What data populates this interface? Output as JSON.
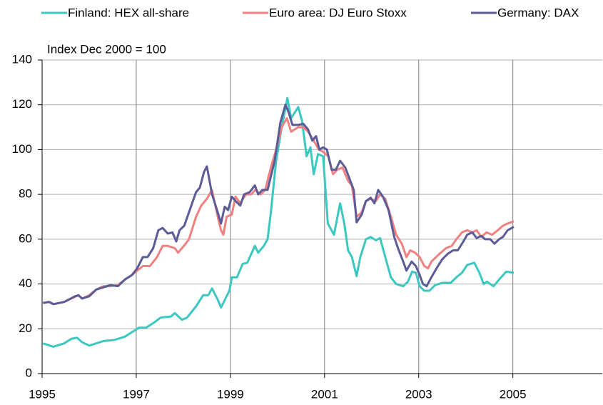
{
  "chart_data": {
    "type": "line",
    "subtitle": "Index Dec 2000 = 100",
    "xlim": [
      1995,
      2006.9
    ],
    "xticks": [
      1995,
      1997,
      1999,
      2001,
      2003,
      2005
    ],
    "ylim": [
      0,
      140
    ],
    "yticks": [
      0,
      20,
      40,
      60,
      80,
      100,
      120,
      140
    ],
    "grid": true,
    "legend": "top",
    "series": [
      {
        "name": "Finland: HEX all-share",
        "color": "#3cc8c0",
        "x": [
          1995.02,
          1995.24,
          1995.47,
          1995.62,
          1995.74,
          1995.85,
          1996.0,
          1996.15,
          1996.3,
          1996.53,
          1996.76,
          1996.91,
          1997.06,
          1997.21,
          1997.36,
          1997.52,
          1997.74,
          1997.82,
          1997.97,
          1998.08,
          1998.27,
          1998.42,
          1998.53,
          1998.61,
          1998.73,
          1998.8,
          1998.98,
          1999.03,
          1999.14,
          1999.26,
          1999.36,
          1999.52,
          1999.59,
          1999.71,
          1999.79,
          1999.86,
          1999.97,
          2000.09,
          2000.21,
          2000.29,
          2000.44,
          2000.52,
          2000.62,
          2000.7,
          2000.77,
          2000.86,
          2000.97,
          2001.07,
          2001.2,
          2001.33,
          2001.42,
          2001.5,
          2001.58,
          2001.68,
          2001.76,
          2001.88,
          2001.98,
          2002.09,
          2002.18,
          2002.29,
          2002.41,
          2002.52,
          2002.67,
          2002.77,
          2002.86,
          2002.94,
          2003.02,
          2003.12,
          2003.23,
          2003.35,
          2003.5,
          2003.68,
          2003.8,
          2003.92,
          2004.03,
          2004.18,
          2004.29,
          2004.38,
          2004.45,
          2004.59,
          2004.71,
          2004.86,
          2005.02
        ],
        "values": [
          13.5,
          12,
          13.5,
          15.5,
          16,
          14,
          12.5,
          13.5,
          14.5,
          15,
          16.5,
          18.5,
          20.5,
          20.5,
          22.5,
          25,
          25.5,
          27,
          24,
          25,
          30,
          35,
          35,
          38,
          33,
          29.5,
          37,
          43,
          43,
          49,
          49.5,
          57,
          54,
          57,
          60,
          72,
          95,
          110,
          123,
          114,
          119,
          113,
          97,
          101,
          89,
          98,
          97,
          67,
          62,
          76,
          67,
          55,
          52,
          43.5,
          52,
          60,
          61,
          59.5,
          60.5,
          52,
          43,
          40,
          39,
          41,
          45.5,
          45,
          39,
          37,
          37,
          39.5,
          40.5,
          40.5,
          43,
          45,
          48.5,
          49.5,
          45,
          40,
          41,
          39,
          42,
          45.5,
          45
        ]
      },
      {
        "name": "Euro area: DJ Euro Stoxx",
        "color": "#f28080",
        "x": [
          1995.02,
          1995.17,
          1995.24,
          1995.47,
          1995.62,
          1995.77,
          1995.85,
          1996.0,
          1996.15,
          1996.3,
          1996.45,
          1996.61,
          1996.76,
          1996.91,
          1997.02,
          1997.14,
          1997.29,
          1997.44,
          1997.56,
          1997.67,
          1997.82,
          1997.89,
          1998.05,
          1998.12,
          1998.27,
          1998.38,
          1998.5,
          1998.61,
          1998.73,
          1998.8,
          1998.85,
          1998.92,
          1999.03,
          1999.11,
          1999.21,
          1999.33,
          1999.44,
          1999.53,
          1999.64,
          1999.74,
          1999.86,
          1999.97,
          2000.09,
          2000.2,
          2000.29,
          2000.44,
          2000.55,
          2000.65,
          2000.77,
          2000.88,
          2000.97,
          2001.08,
          2001.18,
          2001.27,
          2001.38,
          2001.5,
          2001.58,
          2001.68,
          2001.79,
          2001.88,
          2001.98,
          2002.09,
          2002.18,
          2002.29,
          2002.41,
          2002.52,
          2002.64,
          2002.74,
          2002.82,
          2002.92,
          2003.02,
          2003.12,
          2003.2,
          2003.27,
          2003.42,
          2003.58,
          2003.7,
          2003.8,
          2003.92,
          2004.03,
          2004.14,
          2004.23,
          2004.33,
          2004.44,
          2004.56,
          2004.68,
          2004.79,
          2004.89,
          2005.02
        ],
        "values": [
          31.5,
          32,
          31,
          32,
          33.5,
          35,
          33.5,
          35,
          37.5,
          39,
          39,
          39.5,
          42,
          44,
          46,
          48,
          48,
          52,
          57,
          57,
          56,
          54,
          58,
          60,
          70,
          75,
          78,
          82,
          70,
          64,
          62,
          70,
          71,
          79,
          76,
          80,
          80,
          82,
          80,
          82,
          92,
          100,
          110,
          114,
          108,
          110,
          110,
          108,
          104,
          100,
          99,
          97,
          89,
          91,
          92,
          86,
          84,
          70,
          72,
          77,
          78,
          77,
          80,
          78,
          70,
          62,
          58,
          52,
          55,
          54,
          52,
          48,
          47,
          50,
          53,
          56,
          57,
          60,
          63,
          64,
          63,
          64,
          61,
          63,
          62,
          64,
          66,
          67,
          68
        ]
      },
      {
        "name": "Germany: DAX",
        "color": "#5b5b98",
        "x": [
          1995.02,
          1995.14,
          1995.24,
          1995.47,
          1995.7,
          1995.77,
          1995.85,
          1996.0,
          1996.15,
          1996.3,
          1996.45,
          1996.61,
          1996.76,
          1996.91,
          1997.02,
          1997.14,
          1997.24,
          1997.36,
          1997.47,
          1997.56,
          1997.67,
          1997.77,
          1997.85,
          1997.92,
          1998.02,
          1998.12,
          1998.27,
          1998.35,
          1998.44,
          1998.5,
          1998.61,
          1998.73,
          1998.8,
          1998.88,
          1998.95,
          1999.03,
          1999.11,
          1999.21,
          1999.29,
          1999.41,
          1999.52,
          1999.59,
          1999.68,
          1999.79,
          1999.94,
          2000.06,
          2000.17,
          2000.23,
          2000.32,
          2000.44,
          2000.55,
          2000.65,
          2000.74,
          2000.82,
          2000.89,
          2000.97,
          2001.05,
          2001.15,
          2001.24,
          2001.33,
          2001.44,
          2001.53,
          2001.62,
          2001.68,
          2001.79,
          2001.88,
          2001.98,
          2002.06,
          2002.14,
          2002.24,
          2002.36,
          2002.48,
          2002.56,
          2002.67,
          2002.74,
          2002.85,
          2002.94,
          2003.02,
          2003.09,
          2003.17,
          2003.27,
          2003.38,
          2003.5,
          2003.62,
          2003.73,
          2003.83,
          2003.95,
          2004.03,
          2004.14,
          2004.23,
          2004.33,
          2004.41,
          2004.52,
          2004.61,
          2004.71,
          2004.79,
          2004.89,
          2005.02
        ],
        "values": [
          31.5,
          32,
          31,
          32,
          34.5,
          35,
          33.5,
          34.5,
          37.5,
          38.5,
          39.5,
          39,
          42,
          44,
          47,
          52,
          52,
          56,
          64,
          65,
          62.5,
          63,
          59,
          64,
          66,
          72,
          81,
          83,
          90,
          92.5,
          80,
          72,
          67,
          74.5,
          73,
          79,
          77,
          75,
          80,
          81,
          84,
          80,
          82,
          82,
          95,
          112,
          120,
          117,
          111,
          111,
          111.5,
          109,
          104,
          106,
          100,
          101,
          100,
          91,
          91,
          95,
          92,
          87,
          82,
          67.5,
          71,
          77,
          78.5,
          76,
          82,
          79,
          73,
          61,
          56,
          50,
          46,
          50,
          48,
          44,
          40,
          39,
          43,
          47,
          51,
          53.5,
          55,
          55,
          59,
          62,
          63,
          60.5,
          61.5,
          60,
          60,
          58,
          60,
          61,
          64,
          65.5
        ]
      }
    ]
  }
}
